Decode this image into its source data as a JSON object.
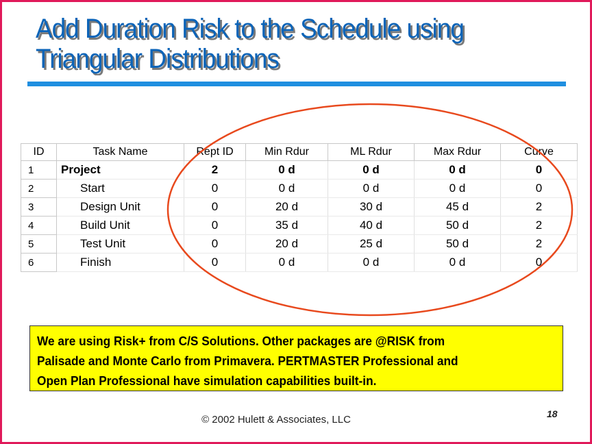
{
  "slide": {
    "title_line1": "Add Duration Risk to the Schedule using",
    "title_line2": "Triangular Distributions",
    "note_lines": [
      "We are using Risk+ from C/S Solutions.  Other packages are @RISK from",
      "Palisade and Monte Carlo from Primavera.  PERTMASTER Professional and",
      "Open Plan Professional have simulation capabilities built-in."
    ],
    "footer": "© 2002 Hulett & Associates, LLC",
    "page_number": "18"
  },
  "table": {
    "headers": [
      "ID",
      "Task Name",
      "Rept ID",
      "Min Rdur",
      "ML Rdur",
      "Max Rdur",
      "Curve"
    ],
    "rows": [
      {
        "id": "1",
        "name": "Project",
        "rept_id": "2",
        "min": "0 d",
        "ml": "0 d",
        "max": "0 d",
        "curve": "0"
      },
      {
        "id": "2",
        "name": "Start",
        "rept_id": "0",
        "min": "0 d",
        "ml": "0 d",
        "max": "0 d",
        "curve": "0"
      },
      {
        "id": "3",
        "name": "Design Unit",
        "rept_id": "0",
        "min": "20 d",
        "ml": "30 d",
        "max": "45 d",
        "curve": "2"
      },
      {
        "id": "4",
        "name": "Build Unit",
        "rept_id": "0",
        "min": "35 d",
        "ml": "40 d",
        "max": "50 d",
        "curve": "2"
      },
      {
        "id": "5",
        "name": "Test Unit",
        "rept_id": "0",
        "min": "20 d",
        "ml": "25 d",
        "max": "50 d",
        "curve": "2"
      },
      {
        "id": "6",
        "name": "Finish",
        "rept_id": "0",
        "min": "0 d",
        "ml": "0 d",
        "max": "0 d",
        "curve": "0"
      }
    ]
  },
  "colors": {
    "title": "#0c64b8",
    "title_rule": "#1f8fe0",
    "frame": "#e0195a",
    "highlight_oval": "#e8491d",
    "note_background": "#ffff00"
  }
}
